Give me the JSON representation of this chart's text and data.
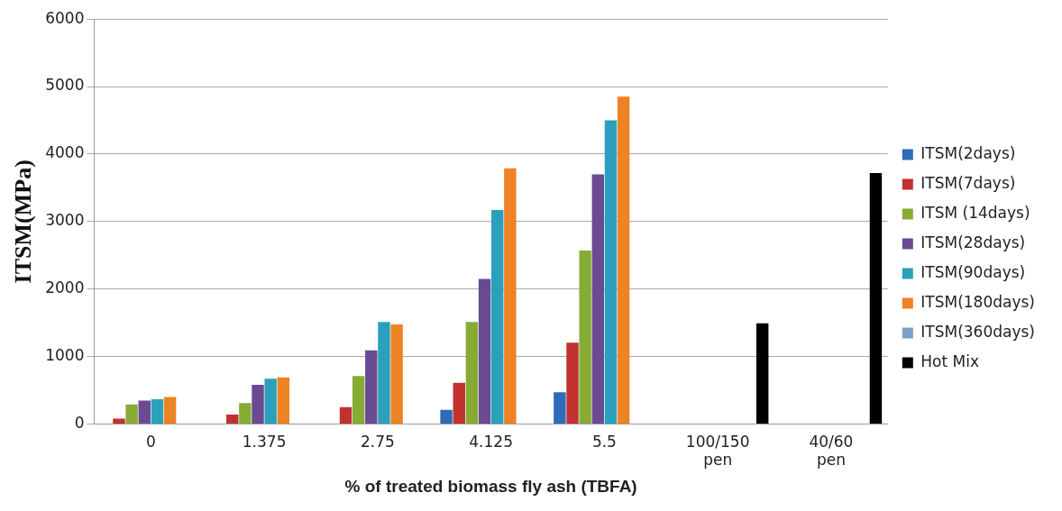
{
  "chart_data": {
    "type": "bar",
    "xlabel": "% of treated biomass fly ash (TBFA)",
    "ylabel": "ITSM(MPa)",
    "categories": [
      "0",
      "1.375",
      "2.75",
      "4.125",
      "5.5",
      "100/150 pen",
      "40/60 pen"
    ],
    "series": [
      {
        "name": "ITSM(2days)",
        "color": "#2e6bb8",
        "values": [
          null,
          null,
          null,
          210,
          470,
          null,
          null
        ]
      },
      {
        "name": "ITSM(7days)",
        "color": "#c0312f",
        "values": [
          80,
          140,
          250,
          610,
          1205,
          null,
          null
        ]
      },
      {
        "name": "ITSM (14days)",
        "color": "#86ac34",
        "values": [
          290,
          310,
          710,
          1510,
          2570,
          null,
          null
        ]
      },
      {
        "name": "ITSM(28days)",
        "color": "#6a4a92",
        "values": [
          345,
          580,
          1090,
          2150,
          3700,
          null,
          null
        ]
      },
      {
        "name": "ITSM(90days)",
        "color": "#2aa0bd",
        "values": [
          365,
          670,
          1510,
          3170,
          4500,
          null,
          null
        ]
      },
      {
        "name": "ITSM(180days)",
        "color": "#ee8323",
        "values": [
          400,
          690,
          1475,
          3790,
          4850,
          null,
          null
        ]
      },
      {
        "name": "ITSM(360days)",
        "color": "#7f9fc6",
        "values": [
          null,
          null,
          null,
          null,
          null,
          null,
          null
        ]
      },
      {
        "name": "Hot Mix",
        "color": "#000000",
        "values": [
          null,
          null,
          null,
          null,
          null,
          1490,
          3720
        ]
      }
    ],
    "ylim": [
      0,
      6000
    ],
    "yticks": [
      0,
      1000,
      2000,
      3000,
      4000,
      5000,
      6000
    ],
    "grid": "y",
    "legend": "right"
  }
}
